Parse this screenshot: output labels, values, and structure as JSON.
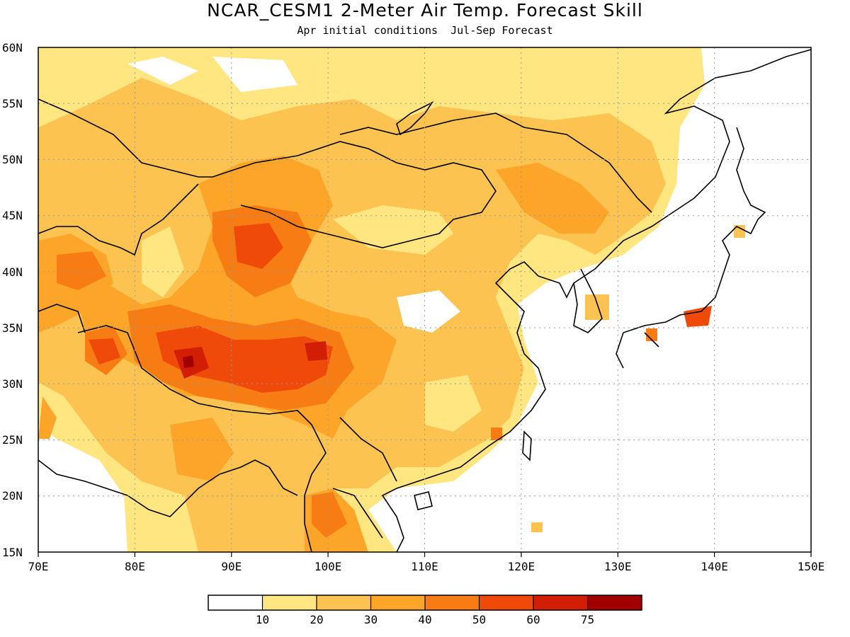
{
  "title": "NCAR_CESM1 2-Meter Air Temp. Forecast Skill",
  "subtitle": "Apr initial conditions  Jul-Sep Forecast",
  "map": {
    "lon_range": [
      70,
      150
    ],
    "lat_range": [
      15,
      60
    ],
    "lat_ticks": [
      "60N",
      "55N",
      "50N",
      "45N",
      "40N",
      "35N",
      "30N",
      "25N",
      "20N",
      "15N"
    ],
    "lon_ticks": [
      "70E",
      "80E",
      "90E",
      "100E",
      "110E",
      "120E",
      "130E",
      "140E",
      "150E"
    ],
    "grid": "dotted",
    "colors": {
      "c0": "#ffffff",
      "c1": "#ffe680",
      "c2": "#fdc350",
      "c3": "#fca528",
      "c4": "#f87c14",
      "c5": "#f04a0a",
      "c6": "#d21e04",
      "c7": "#a00000"
    }
  },
  "colorbar": {
    "labels": [
      "10",
      "20",
      "30",
      "40",
      "50",
      "60",
      "75"
    ],
    "colors": [
      "#ffffff",
      "#ffe680",
      "#fdc350",
      "#fca528",
      "#f87c14",
      "#f04a0a",
      "#d21e04",
      "#a00000"
    ]
  }
}
